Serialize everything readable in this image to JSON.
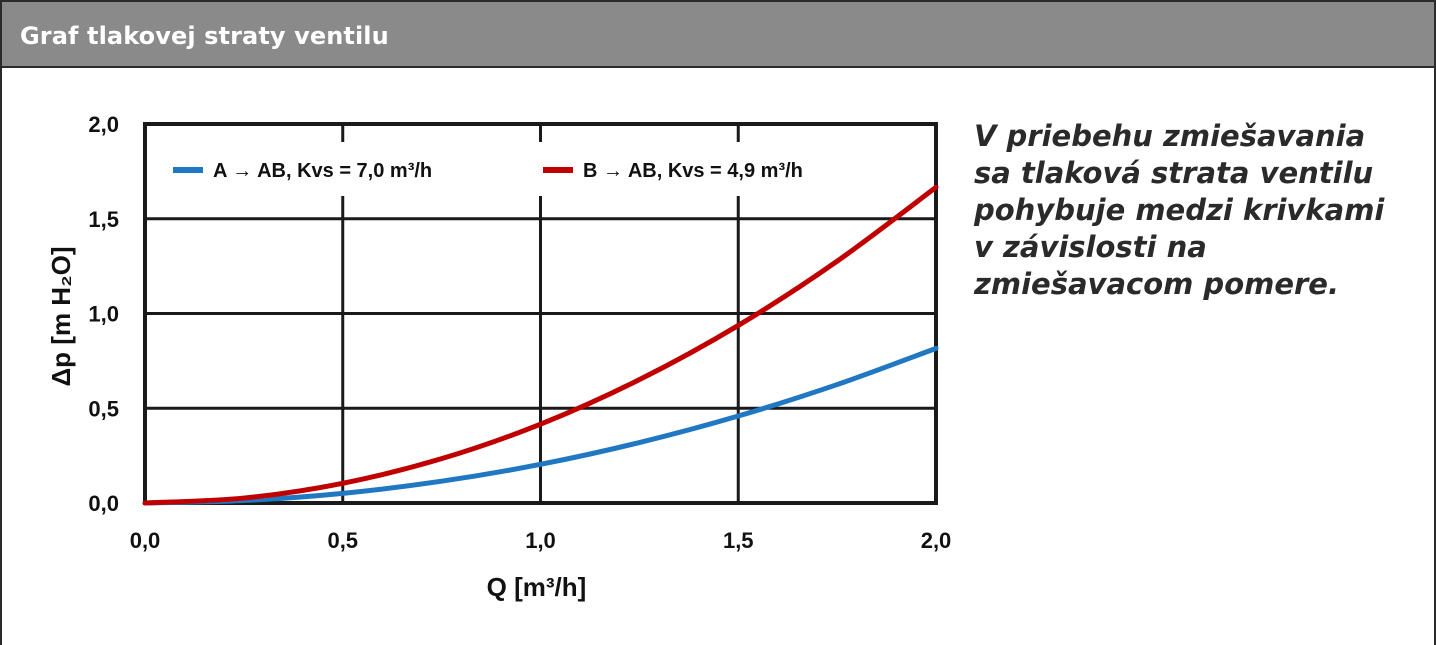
{
  "header": {
    "title": "Graf tlakovej straty ventilu"
  },
  "note": "V priebehu zmiešavania sa tlaková strata ventilu pohybuje medzi krivkami v závislosti na zmiešavacom pomere.",
  "chart_data": {
    "type": "line",
    "xlabel": "Q [m³/h]",
    "ylabel": "Δp [m H₂O]",
    "xlim": [
      0,
      2
    ],
    "ylim": [
      0,
      2
    ],
    "x_ticks": [
      "0,0",
      "0,5",
      "1,0",
      "1,5",
      "2,0"
    ],
    "y_ticks": [
      "0,0",
      "0,5",
      "1,0",
      "1,5",
      "2,0"
    ],
    "grid": true,
    "legend_position": "top",
    "x": [
      0,
      0.25,
      0.5,
      0.75,
      1.0,
      1.25,
      1.5,
      1.75,
      2.0
    ],
    "series": [
      {
        "name": "A → AB, Kvs = 7,0 m³/h",
        "color": "#1f78c1",
        "values": [
          0,
          0.013,
          0.051,
          0.115,
          0.204,
          0.319,
          0.459,
          0.625,
          0.816
        ]
      },
      {
        "name": "B → AB, Kvs = 4,9 m³/h",
        "color": "#c00000",
        "values": [
          0,
          0.026,
          0.104,
          0.234,
          0.416,
          0.651,
          0.937,
          1.276,
          1.666
        ]
      }
    ]
  }
}
